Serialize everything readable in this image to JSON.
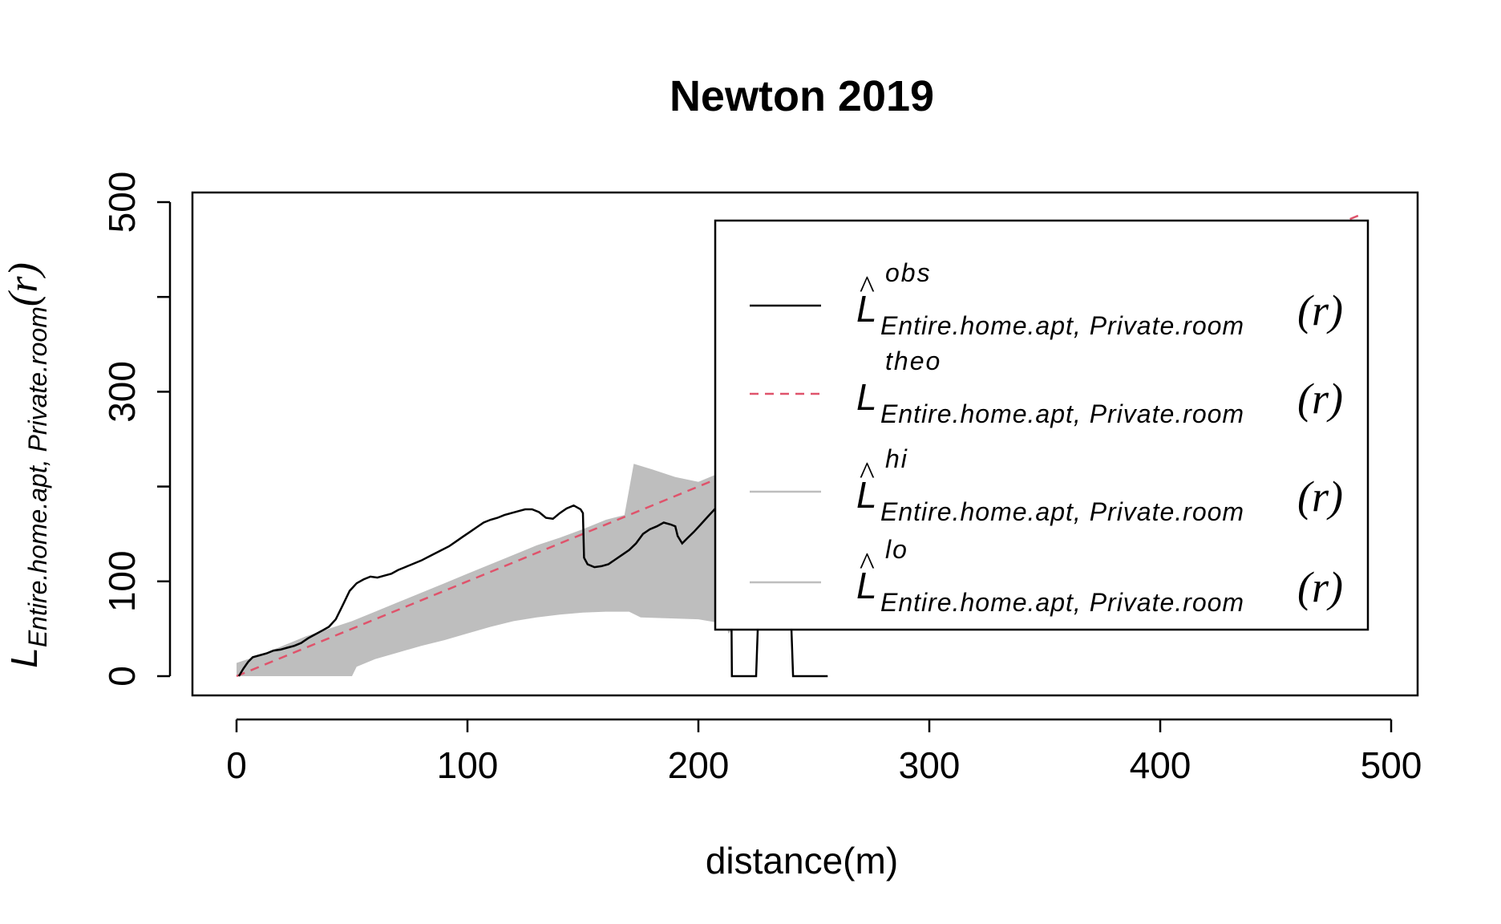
{
  "chart_data": {
    "type": "line",
    "title": "Newton 2019",
    "xlabel": "distance(m)",
    "ylabel": {
      "base": "L",
      "subscript": "Entire.home.apt, Private.room",
      "arg": "(r)"
    },
    "xlim": [
      0,
      500
    ],
    "ylim": [
      0,
      500
    ],
    "x_ticks": [
      0,
      100,
      200,
      300,
      400,
      500
    ],
    "x_tick_labels": [
      "0",
      "100",
      "200",
      "300",
      "400",
      "500"
    ],
    "y_ticks": [
      0,
      100,
      200,
      300,
      400,
      500
    ],
    "y_tick_labels": [
      "0",
      "100",
      "300",
      "500"
    ],
    "y_labeled_ticks": [
      0,
      100,
      300,
      500
    ],
    "grid": false,
    "legend_position": "top-right",
    "legend": [
      {
        "key": "obs",
        "base": "L",
        "hat": true,
        "superscript": "obs",
        "subscript": "Entire.home.apt, Private.room",
        "arg": "(r)",
        "color": "#000000",
        "dash": "solid"
      },
      {
        "key": "theo",
        "base": "L",
        "hat": false,
        "superscript": "theo",
        "subscript": "Entire.home.apt, Private.room",
        "arg": "(r)",
        "color": "#DF536B",
        "dash": "dashed"
      },
      {
        "key": "hi",
        "base": "L",
        "hat": true,
        "superscript": "hi",
        "subscript": "Entire.home.apt, Private.room",
        "arg": "(r)",
        "color": "#BEBEBE",
        "dash": "solid"
      },
      {
        "key": "lo",
        "base": "L",
        "hat": true,
        "superscript": "lo",
        "subscript": "Entire.home.apt, Private.room",
        "arg": "(r)",
        "color": "#BEBEBE",
        "dash": "solid"
      }
    ],
    "series": [
      {
        "key": "obs",
        "color": "#000000",
        "points": [
          [
            1,
            0
          ],
          [
            3,
            8
          ],
          [
            5,
            15
          ],
          [
            7,
            20
          ],
          [
            10,
            22
          ],
          [
            13,
            24
          ],
          [
            16,
            27
          ],
          [
            19,
            28
          ],
          [
            22,
            30
          ],
          [
            25,
            32
          ],
          [
            28,
            35
          ],
          [
            31,
            40
          ],
          [
            34,
            44
          ],
          [
            37,
            48
          ],
          [
            40,
            52
          ],
          [
            43,
            60
          ],
          [
            46,
            75
          ],
          [
            49,
            90
          ],
          [
            52,
            98
          ],
          [
            55,
            102
          ],
          [
            58,
            105
          ],
          [
            61,
            104
          ],
          [
            64,
            106
          ],
          [
            67,
            108
          ],
          [
            70,
            112
          ],
          [
            73,
            115
          ],
          [
            76,
            118
          ],
          [
            80,
            122
          ],
          [
            84,
            127
          ],
          [
            88,
            132
          ],
          [
            92,
            137
          ],
          [
            95,
            142
          ],
          [
            98,
            147
          ],
          [
            101,
            152
          ],
          [
            104,
            157
          ],
          [
            107,
            162
          ],
          [
            110,
            165
          ],
          [
            113,
            167
          ],
          [
            116,
            170
          ],
          [
            119,
            172
          ],
          [
            122,
            174
          ],
          [
            125,
            176
          ],
          [
            128,
            176
          ],
          [
            131,
            173
          ],
          [
            134,
            167
          ],
          [
            137,
            166
          ],
          [
            140,
            172
          ],
          [
            143,
            177
          ],
          [
            146,
            180
          ],
          [
            149,
            176
          ],
          [
            150,
            172
          ],
          [
            150.5,
            125
          ],
          [
            152,
            118
          ],
          [
            155,
            115
          ],
          [
            158,
            116
          ],
          [
            161,
            118
          ],
          [
            164,
            123
          ],
          [
            167,
            128
          ],
          [
            170,
            133
          ],
          [
            173,
            140
          ],
          [
            176,
            150
          ],
          [
            179,
            155
          ],
          [
            182,
            158
          ],
          [
            185,
            162
          ],
          [
            188,
            160
          ],
          [
            190,
            158
          ],
          [
            191,
            148
          ],
          [
            193,
            140
          ],
          [
            195,
            145
          ],
          [
            198,
            152
          ],
          [
            201,
            160
          ],
          [
            204,
            168
          ],
          [
            207,
            176
          ],
          [
            210,
            184
          ],
          [
            212,
            186
          ],
          [
            213,
            178
          ],
          [
            214,
            175
          ],
          [
            214.5,
            0
          ],
          [
            225,
            0
          ],
          [
            226,
            70
          ],
          [
            240,
            70
          ],
          [
            241,
            0
          ],
          [
            256,
            0
          ]
        ]
      },
      {
        "key": "theo",
        "color": "#DF536B",
        "points": [
          [
            0,
            0
          ],
          [
            487,
            487
          ]
        ]
      },
      {
        "key": "hi",
        "color": "#BEBEBE",
        "points": [
          [
            0,
            14
          ],
          [
            10,
            22
          ],
          [
            20,
            32
          ],
          [
            30,
            42
          ],
          [
            40,
            50
          ],
          [
            50,
            58
          ],
          [
            60,
            68
          ],
          [
            70,
            78
          ],
          [
            80,
            88
          ],
          [
            90,
            98
          ],
          [
            100,
            108
          ],
          [
            110,
            118
          ],
          [
            120,
            128
          ],
          [
            130,
            138
          ],
          [
            140,
            146
          ],
          [
            150,
            155
          ],
          [
            160,
            165
          ],
          [
            168,
            170
          ],
          [
            172,
            224
          ],
          [
            180,
            218
          ],
          [
            190,
            210
          ],
          [
            200,
            205
          ],
          [
            210,
            215
          ],
          [
            212,
            220
          ],
          [
            213,
            268
          ],
          [
            230,
            268
          ],
          [
            243,
            268
          ],
          [
            245,
            292
          ]
        ]
      },
      {
        "key": "lo",
        "color": "#BEBEBE",
        "points": [
          [
            0,
            0
          ],
          [
            50,
            0
          ],
          [
            52,
            10
          ],
          [
            60,
            18
          ],
          [
            70,
            25
          ],
          [
            80,
            32
          ],
          [
            90,
            38
          ],
          [
            100,
            45
          ],
          [
            110,
            52
          ],
          [
            120,
            58
          ],
          [
            130,
            62
          ],
          [
            140,
            65
          ],
          [
            150,
            67
          ],
          [
            160,
            68
          ],
          [
            170,
            68
          ],
          [
            175,
            62
          ],
          [
            200,
            60
          ],
          [
            212,
            55
          ],
          [
            213,
            45
          ],
          [
            218,
            55
          ],
          [
            225,
            55
          ],
          [
            230,
            90
          ],
          [
            240,
            90
          ],
          [
            243,
            92
          ],
          [
            245,
            90
          ]
        ]
      }
    ]
  }
}
